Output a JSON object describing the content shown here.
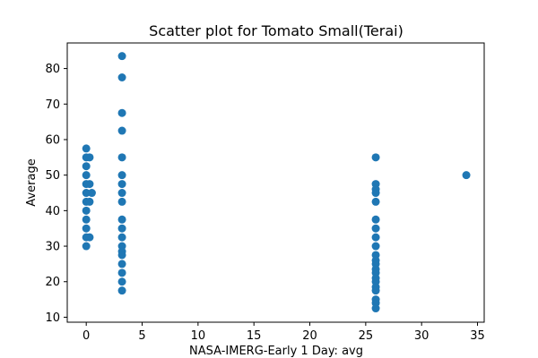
{
  "chart_data": {
    "type": "scatter",
    "title": "Scatter plot for Tomato Small(Terai)",
    "xlabel": "NASA-IMERG-Early 1 Day: avg",
    "ylabel": "Average",
    "xlim": [
      -1.7,
      35.6
    ],
    "ylim": [
      8.6,
      87.2
    ],
    "xticks": [
      0,
      5,
      10,
      15,
      20,
      25,
      30,
      35
    ],
    "yticks": [
      10,
      20,
      30,
      40,
      50,
      60,
      70,
      80
    ],
    "grid": false,
    "marker_color": "#1f77b4",
    "points": [
      [
        0,
        57.5
      ],
      [
        0,
        55
      ],
      [
        0,
        52.5
      ],
      [
        0,
        50
      ],
      [
        0,
        47.5
      ],
      [
        0,
        45
      ],
      [
        0,
        42.5
      ],
      [
        0,
        40
      ],
      [
        0,
        37.5
      ],
      [
        0,
        35
      ],
      [
        0,
        32.5
      ],
      [
        0,
        30
      ],
      [
        0.3,
        55
      ],
      [
        0.3,
        47.5
      ],
      [
        0.3,
        42.5
      ],
      [
        0.3,
        32.5
      ],
      [
        0.5,
        45
      ],
      [
        3.2,
        83.5
      ],
      [
        3.2,
        77.5
      ],
      [
        3.2,
        67.5
      ],
      [
        3.2,
        62.5
      ],
      [
        3.2,
        55
      ],
      [
        3.2,
        50
      ],
      [
        3.2,
        47.5
      ],
      [
        3.2,
        45
      ],
      [
        3.2,
        42.5
      ],
      [
        3.2,
        37.5
      ],
      [
        3.2,
        35
      ],
      [
        3.2,
        32.5
      ],
      [
        3.2,
        30
      ],
      [
        3.2,
        28.5
      ],
      [
        3.2,
        27.5
      ],
      [
        3.2,
        25
      ],
      [
        3.2,
        22.5
      ],
      [
        3.2,
        20
      ],
      [
        3.2,
        17.5
      ],
      [
        25.9,
        55
      ],
      [
        25.9,
        47.5
      ],
      [
        25.9,
        46
      ],
      [
        25.9,
        45
      ],
      [
        25.9,
        42.5
      ],
      [
        25.9,
        37.5
      ],
      [
        25.9,
        35
      ],
      [
        25.9,
        32.5
      ],
      [
        25.9,
        30
      ],
      [
        25.9,
        27.5
      ],
      [
        25.9,
        26
      ],
      [
        25.9,
        25
      ],
      [
        25.9,
        23.5
      ],
      [
        25.9,
        22.5
      ],
      [
        25.9,
        21
      ],
      [
        25.9,
        20
      ],
      [
        25.9,
        18.5
      ],
      [
        25.9,
        17.5
      ],
      [
        25.9,
        15
      ],
      [
        25.9,
        14
      ],
      [
        25.9,
        12.5
      ],
      [
        34,
        50
      ]
    ]
  }
}
